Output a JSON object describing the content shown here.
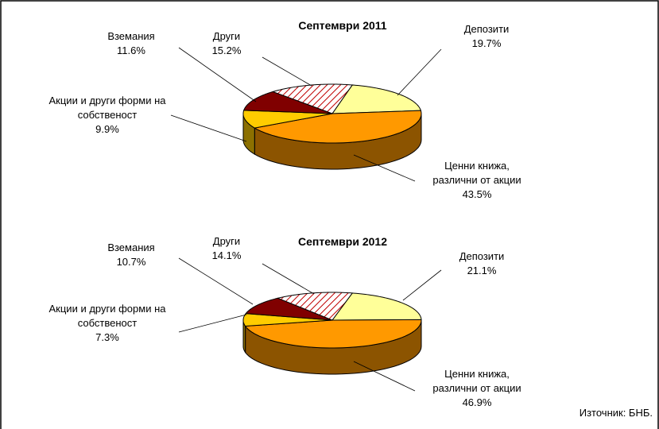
{
  "chart_data": [
    {
      "type": "pie",
      "title": "Септември 2011",
      "categories": [
        "Депозити",
        "Ценни книжа, различни от акции",
        "Акции и други форми на собственост",
        "Вземания",
        "Други"
      ],
      "values": [
        19.7,
        43.5,
        9.9,
        11.6,
        15.2
      ],
      "value_labels": [
        "19.7%",
        "43.5%",
        "9.9%",
        "11.6%",
        "15.2%"
      ],
      "colors": [
        "#ffff99",
        "#ff9900",
        "#ffcc00",
        "#800000",
        "#c00000"
      ],
      "patterns": [
        null,
        null,
        null,
        null,
        "diagonal"
      ]
    },
    {
      "type": "pie",
      "title": "Септември 2012",
      "categories": [
        "Депозити",
        "Ценни книжа, различни от акции",
        "Акции и други форми на собственост",
        "Вземания",
        "Други"
      ],
      "values": [
        21.1,
        46.9,
        7.3,
        10.7,
        14.1
      ],
      "value_labels": [
        "21.1%",
        "46.9%",
        "7.3%",
        "10.7%",
        "14.1%"
      ],
      "colors": [
        "#ffff99",
        "#ff9900",
        "#ffcc00",
        "#800000",
        "#c00000"
      ],
      "patterns": [
        null,
        null,
        null,
        null,
        "diagonal"
      ]
    }
  ],
  "source": "Източник: БНБ."
}
